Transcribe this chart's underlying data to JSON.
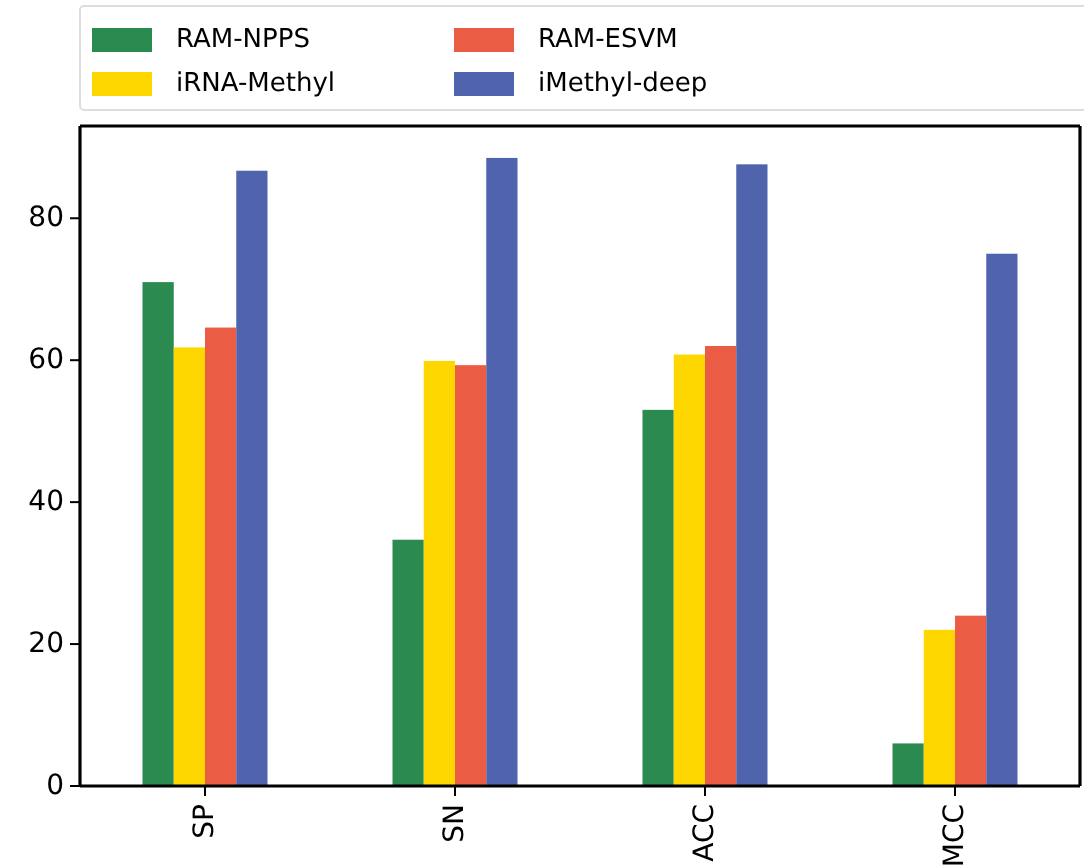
{
  "chart_data": {
    "type": "bar",
    "categories": [
      "SP",
      "SN",
      "ACC",
      "MCC"
    ],
    "series": [
      {
        "name": "RAM-NPPS",
        "color": "#2a8a50",
        "values": [
          71,
          34.7,
          53,
          6
        ]
      },
      {
        "name": "iRNA-Methyl",
        "color": "#ffd700",
        "values": [
          61.8,
          59.9,
          60.8,
          22
        ]
      },
      {
        "name": "RAM-ESVM",
        "color": "#eb5c44",
        "values": [
          64.6,
          59.3,
          62,
          24
        ]
      },
      {
        "name": "iMethyl-deep",
        "color": "#5064ad",
        "values": [
          86.7,
          88.5,
          87.6,
          75
        ]
      }
    ],
    "ylim": [
      0,
      93
    ],
    "yticks": [
      0,
      20,
      40,
      60,
      80
    ],
    "grid": false,
    "legend": "top"
  }
}
